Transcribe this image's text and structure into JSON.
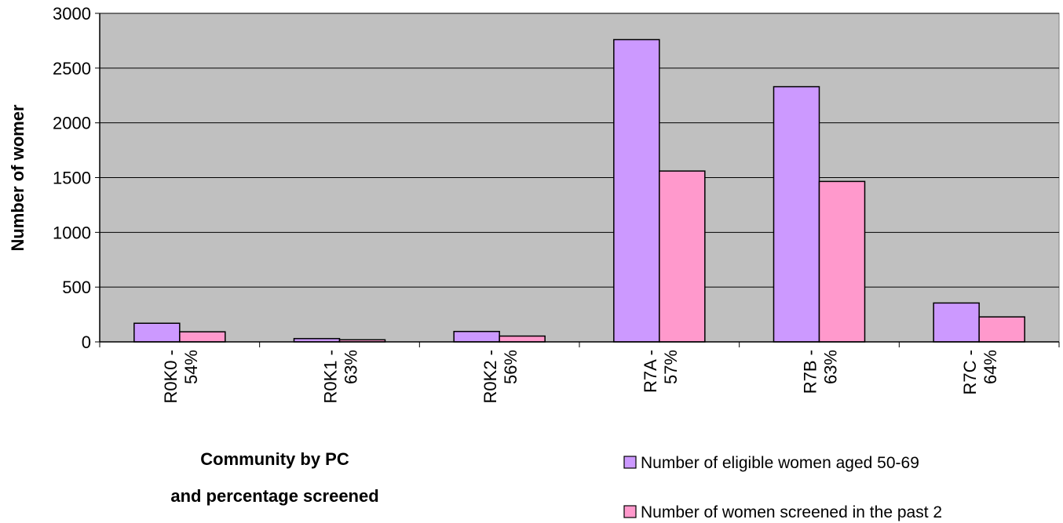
{
  "chart_data": {
    "type": "bar",
    "categories": [
      [
        "R0K0 -",
        "54%"
      ],
      [
        "R0K1 -",
        "63%"
      ],
      [
        "R0K2 -",
        "56%"
      ],
      [
        "R7A -",
        "57%"
      ],
      [
        "R7B -",
        "63%"
      ],
      [
        "R7C -",
        "64%"
      ]
    ],
    "series": [
      {
        "name": "Number of eligible women aged 50-69",
        "values": [
          170,
          30,
          95,
          2760,
          2330,
          355
        ],
        "color": "#cc99ff"
      },
      {
        "name": "Number of women screened in the past 2",
        "values": [
          92,
          19,
          53,
          1560,
          1465,
          228
        ],
        "color": "#ff99cc"
      }
    ],
    "ylabel": "Number of womer",
    "xlabel_lines": [
      "Community by PC",
      "and percentage screened"
    ],
    "ylim": [
      0,
      3000
    ],
    "yticks": [
      0,
      500,
      1000,
      1500,
      2000,
      2500,
      3000
    ],
    "grid": true,
    "plot_background": "#c0c0c0",
    "legend_position": "bottom-right"
  }
}
